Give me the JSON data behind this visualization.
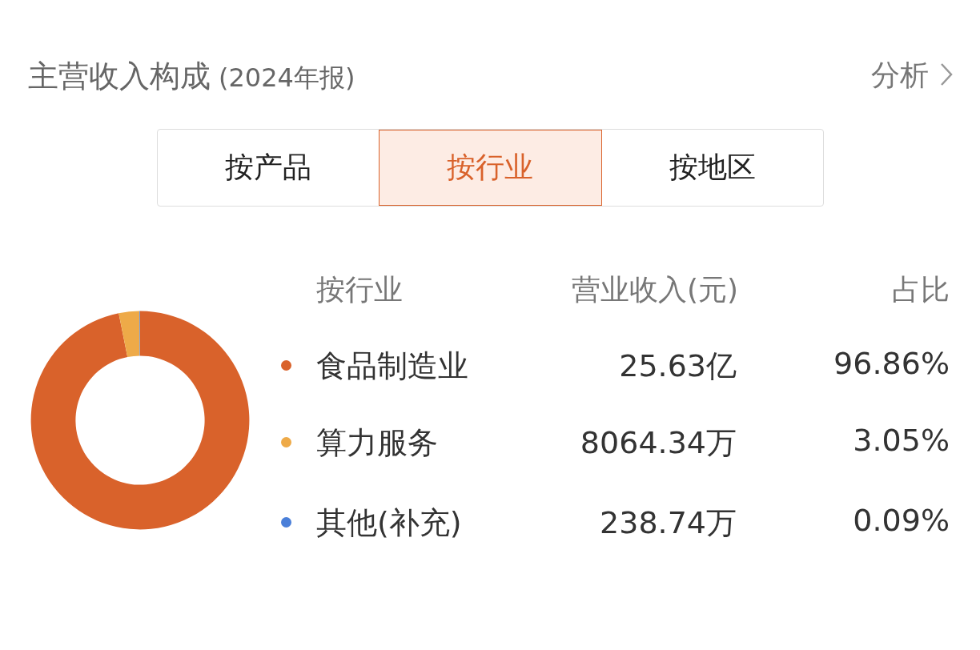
{
  "chart_data": {
    "type": "donut",
    "title": "主营收入构成",
    "subtitle": "(2024年报)",
    "categories": [
      "食品制造业",
      "算力服务",
      "其他(补充)"
    ],
    "values": [
      96.86,
      3.05,
      0.09
    ],
    "colors": [
      "#d9622b",
      "#eeaa48",
      "#4a7fd9"
    ],
    "value_labels": [
      "96.86%",
      "3.05%",
      "0.09%"
    ],
    "legend": "right",
    "annotations": [
      "分析",
      "按产品",
      "按行业",
      "按地区",
      "按行业",
      "营业收入(元)",
      "占比",
      "25.63亿",
      "8064.34万",
      "238.74万"
    ]
  }
}
